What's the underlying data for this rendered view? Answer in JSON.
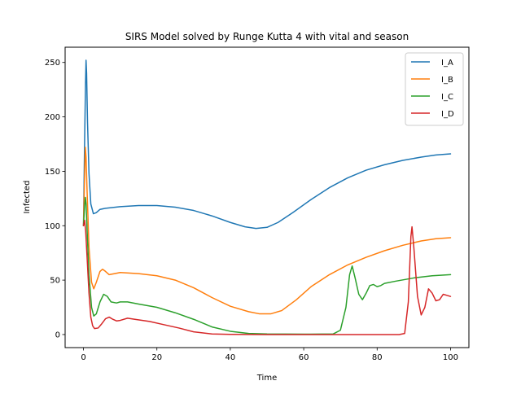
{
  "chart_data": {
    "type": "line",
    "title": "SIRS Model solved by Runge Kutta 4 with vital and season",
    "xlabel": "Time",
    "ylabel": "Infected",
    "xlim": [
      -5,
      105
    ],
    "ylim": [
      -12,
      264
    ],
    "xticks": [
      0,
      20,
      40,
      60,
      80,
      100
    ],
    "yticks": [
      0,
      50,
      100,
      150,
      200,
      250
    ],
    "grid": false,
    "legend_position": "top-right",
    "series": [
      {
        "name": "I_A",
        "color": "#1f77b4",
        "points": [
          [
            0,
            100
          ],
          [
            0.3,
            175
          ],
          [
            0.55,
            230
          ],
          [
            0.7,
            252
          ],
          [
            0.85,
            240
          ],
          [
            1.1,
            195
          ],
          [
            1.5,
            148
          ],
          [
            2,
            120
          ],
          [
            2.7,
            111
          ],
          [
            3.5,
            112
          ],
          [
            4.5,
            115
          ],
          [
            6,
            116
          ],
          [
            10,
            117.5
          ],
          [
            15,
            118.5
          ],
          [
            20,
            118.5
          ],
          [
            25,
            117
          ],
          [
            30,
            114
          ],
          [
            35,
            109
          ],
          [
            40,
            103
          ],
          [
            44,
            99
          ],
          [
            47,
            97.5
          ],
          [
            50,
            98.5
          ],
          [
            53,
            103
          ],
          [
            57,
            112
          ],
          [
            62,
            124
          ],
          [
            67,
            135
          ],
          [
            72,
            144
          ],
          [
            77,
            151
          ],
          [
            82,
            156
          ],
          [
            87,
            160
          ],
          [
            92,
            163
          ],
          [
            96,
            165
          ],
          [
            100,
            166
          ]
        ]
      },
      {
        "name": "I_B",
        "color": "#ff7f0e",
        "points": [
          [
            0,
            100
          ],
          [
            0.3,
            145
          ],
          [
            0.5,
            172
          ],
          [
            0.7,
            163
          ],
          [
            1,
            130
          ],
          [
            1.5,
            80
          ],
          [
            2.2,
            48
          ],
          [
            2.8,
            42
          ],
          [
            3.5,
            48
          ],
          [
            4.5,
            58
          ],
          [
            5.2,
            60
          ],
          [
            6,
            58
          ],
          [
            7,
            55
          ],
          [
            8.5,
            56
          ],
          [
            10,
            57
          ],
          [
            15,
            56
          ],
          [
            20,
            54
          ],
          [
            25,
            50
          ],
          [
            30,
            43
          ],
          [
            35,
            34
          ],
          [
            40,
            26
          ],
          [
            45,
            21
          ],
          [
            48,
            19
          ],
          [
            51,
            19
          ],
          [
            54,
            22
          ],
          [
            58,
            32
          ],
          [
            62,
            44
          ],
          [
            67,
            55
          ],
          [
            72,
            64
          ],
          [
            77,
            71
          ],
          [
            82,
            77
          ],
          [
            87,
            82
          ],
          [
            92,
            86
          ],
          [
            96,
            88
          ],
          [
            100,
            89
          ]
        ]
      },
      {
        "name": "I_C",
        "color": "#2ca02c",
        "points": [
          [
            0,
            100
          ],
          [
            0.3,
            118
          ],
          [
            0.5,
            126
          ],
          [
            0.7,
            120
          ],
          [
            1,
            95
          ],
          [
            1.5,
            55
          ],
          [
            2.2,
            25
          ],
          [
            2.8,
            17
          ],
          [
            3.5,
            19
          ],
          [
            4.5,
            30
          ],
          [
            5.5,
            37
          ],
          [
            6.5,
            35
          ],
          [
            7.5,
            30
          ],
          [
            9,
            29
          ],
          [
            10,
            30
          ],
          [
            12,
            30
          ],
          [
            15,
            28
          ],
          [
            20,
            25
          ],
          [
            25,
            20
          ],
          [
            30,
            14
          ],
          [
            35,
            7
          ],
          [
            40,
            3
          ],
          [
            45,
            1
          ],
          [
            50,
            0.5
          ],
          [
            60,
            0.3
          ],
          [
            68,
            0.5
          ],
          [
            70,
            4
          ],
          [
            71.5,
            25
          ],
          [
            72.5,
            55
          ],
          [
            73.2,
            63
          ],
          [
            74,
            52
          ],
          [
            75,
            37
          ],
          [
            76,
            32
          ],
          [
            77,
            38
          ],
          [
            78,
            45
          ],
          [
            79,
            46
          ],
          [
            80,
            44
          ],
          [
            81,
            45
          ],
          [
            82,
            47
          ],
          [
            85,
            49
          ],
          [
            90,
            52
          ],
          [
            95,
            54
          ],
          [
            100,
            55
          ]
        ]
      },
      {
        "name": "I_D",
        "color": "#d62728",
        "points": [
          [
            0,
            100
          ],
          [
            0.3,
            105
          ],
          [
            0.6,
            95
          ],
          [
            1,
            70
          ],
          [
            1.5,
            38
          ],
          [
            2,
            16
          ],
          [
            2.5,
            8
          ],
          [
            3,
            5.5
          ],
          [
            4,
            6
          ],
          [
            5,
            10
          ],
          [
            6,
            14.5
          ],
          [
            7,
            16
          ],
          [
            8,
            14
          ],
          [
            9,
            12.5
          ],
          [
            10,
            13
          ],
          [
            12,
            15
          ],
          [
            14,
            14
          ],
          [
            18,
            12
          ],
          [
            22,
            9
          ],
          [
            26,
            6
          ],
          [
            30,
            2.5
          ],
          [
            35,
            0.5
          ],
          [
            40,
            0.2
          ],
          [
            50,
            0
          ],
          [
            60,
            0
          ],
          [
            70,
            0
          ],
          [
            80,
            0
          ],
          [
            86,
            0
          ],
          [
            87.5,
            1
          ],
          [
            88.5,
            30
          ],
          [
            89.2,
            90
          ],
          [
            89.5,
            99
          ],
          [
            90,
            80
          ],
          [
            91,
            35
          ],
          [
            92,
            18
          ],
          [
            93,
            25
          ],
          [
            94,
            42
          ],
          [
            95,
            38
          ],
          [
            96,
            31
          ],
          [
            97,
            32
          ],
          [
            98,
            37
          ],
          [
            99,
            36
          ],
          [
            100,
            35
          ]
        ]
      }
    ]
  }
}
